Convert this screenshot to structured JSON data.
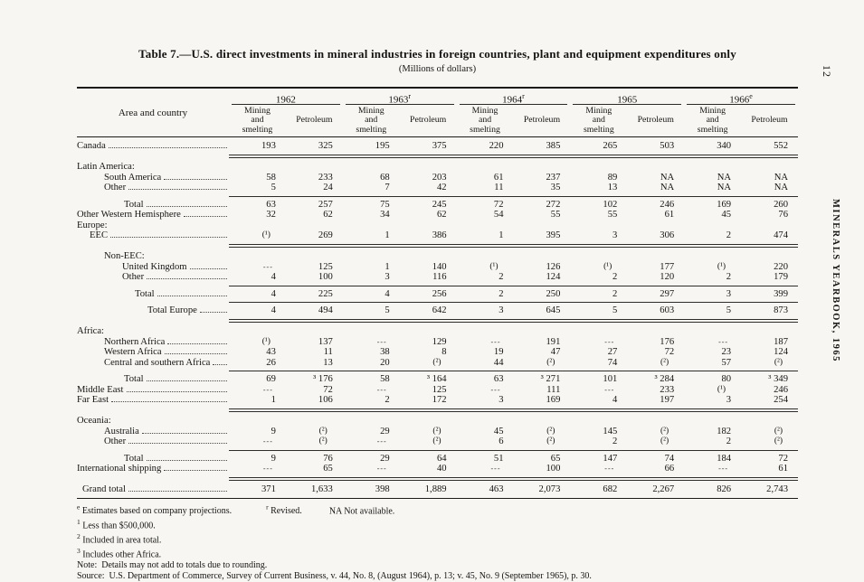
{
  "page": {
    "number": "12",
    "margin_text": "MINERALS YEARBOOK, 1965"
  },
  "table": {
    "title": "Table 7.—U.S. direct investments in mineral industries in foreign countries, plant and equipment expenditures only",
    "subtitle": "(Millions of dollars)",
    "stub_header": "Area and country",
    "years": [
      {
        "label": "1962",
        "sup": ""
      },
      {
        "label": "1963",
        "sup": "r"
      },
      {
        "label": "1964",
        "sup": "r"
      },
      {
        "label": "1965",
        "sup": ""
      },
      {
        "label": "1966",
        "sup": "e"
      }
    ],
    "col_headers": [
      "Mining\nand\nsmelting",
      "Petroleum"
    ],
    "rows": [
      {
        "label": "Canada",
        "ind": 0,
        "vals": [
          "193",
          "325",
          "195",
          "375",
          "220",
          "385",
          "265",
          "503",
          "340",
          "552"
        ],
        "rule": "d"
      },
      {
        "label": "Latin America:",
        "ind": 0,
        "sec": true
      },
      {
        "label": "South America",
        "ind": 30,
        "vals": [
          "58",
          "233",
          "68",
          "203",
          "61",
          "237",
          "89",
          "NA",
          "NA",
          "NA"
        ]
      },
      {
        "label": "Other",
        "ind": 30,
        "vals": [
          "5",
          "24",
          "7",
          "42",
          "11",
          "35",
          "13",
          "NA",
          "NA",
          "NA"
        ],
        "rule": "s"
      },
      {
        "label": "Total",
        "ind": 52,
        "vals": [
          "63",
          "257",
          "75",
          "245",
          "72",
          "272",
          "102",
          "246",
          "169",
          "260"
        ]
      },
      {
        "label": "Other Western Hemisphere",
        "ind": 0,
        "vals": [
          "32",
          "62",
          "34",
          "62",
          "54",
          "55",
          "55",
          "61",
          "45",
          "76"
        ]
      },
      {
        "label": "Europe:",
        "ind": 0,
        "sec": true
      },
      {
        "label": "EEC",
        "ind": 14,
        "vals": [
          "(¹)",
          "269",
          "1",
          "386",
          "1",
          "395",
          "3",
          "306",
          "2",
          "474"
        ],
        "rule": "d"
      },
      {
        "label": "Non-EEC:",
        "ind": 30,
        "sec": true
      },
      {
        "label": "United Kingdom",
        "ind": 50,
        "vals": [
          "---",
          "125",
          "1",
          "140",
          "(¹)",
          "126",
          "(¹)",
          "177",
          "(¹)",
          "220"
        ]
      },
      {
        "label": "Other",
        "ind": 50,
        "vals": [
          "4",
          "100",
          "3",
          "116",
          "2",
          "124",
          "2",
          "120",
          "2",
          "179"
        ],
        "rule": "s"
      },
      {
        "label": "Total",
        "ind": 64,
        "vals": [
          "4",
          "225",
          "4",
          "256",
          "2",
          "250",
          "2",
          "297",
          "3",
          "399"
        ],
        "rule": "s"
      },
      {
        "label": "Total Europe",
        "ind": 78,
        "vals": [
          "4",
          "494",
          "5",
          "642",
          "3",
          "645",
          "5",
          "603",
          "5",
          "873"
        ],
        "rule": "d"
      },
      {
        "label": "Africa:",
        "ind": 0,
        "sec": true
      },
      {
        "label": "Northern Africa",
        "ind": 30,
        "vals": [
          "(¹)",
          "137",
          "---",
          "129",
          "---",
          "191",
          "---",
          "176",
          "---",
          "187"
        ]
      },
      {
        "label": "Western Africa",
        "ind": 30,
        "vals": [
          "43",
          "11",
          "38",
          "8",
          "19",
          "47",
          "27",
          "72",
          "23",
          "124"
        ]
      },
      {
        "label": "Central and southern Africa",
        "ind": 30,
        "vals": [
          "26",
          "13",
          "20",
          "(²)",
          "44",
          "(²)",
          "74",
          "(²)",
          "57",
          "(²)"
        ],
        "rule": "s"
      },
      {
        "label": "Total",
        "ind": 52,
        "vals": [
          "69",
          "³ 176",
          "58",
          "³ 164",
          "63",
          "³ 271",
          "101",
          "³ 284",
          "80",
          "³ 349"
        ]
      },
      {
        "label": "Middle East",
        "ind": 0,
        "vals": [
          "---",
          "72",
          "---",
          "125",
          "---",
          "111",
          "---",
          "233",
          "(¹)",
          "246"
        ]
      },
      {
        "label": "Far East",
        "ind": 0,
        "vals": [
          "1",
          "106",
          "2",
          "172",
          "3",
          "169",
          "4",
          "197",
          "3",
          "254"
        ],
        "rule": "d"
      },
      {
        "label": "Oceania:",
        "ind": 0,
        "sec": true
      },
      {
        "label": "Australia",
        "ind": 30,
        "vals": [
          "9",
          "(²)",
          "29",
          "(²)",
          "45",
          "(²)",
          "145",
          "(²)",
          "182",
          "(²)"
        ]
      },
      {
        "label": "Other",
        "ind": 30,
        "vals": [
          "---",
          "(²)",
          "---",
          "(²)",
          "6",
          "(²)",
          "2",
          "(²)",
          "2",
          "(²)"
        ],
        "rule": "s"
      },
      {
        "label": "Total",
        "ind": 52,
        "vals": [
          "9",
          "76",
          "29",
          "64",
          "51",
          "65",
          "147",
          "74",
          "184",
          "72"
        ]
      },
      {
        "label": "International shipping",
        "ind": 0,
        "vals": [
          "---",
          "65",
          "---",
          "40",
          "---",
          "100",
          "---",
          "66",
          "---",
          "61"
        ],
        "rule": "d"
      },
      {
        "label": "Grand total",
        "ind": 6,
        "vals": [
          "371",
          "1,633",
          "398",
          "1,889",
          "463",
          "2,073",
          "682",
          "2,267",
          "826",
          "2,743"
        ],
        "rule": "full"
      }
    ]
  },
  "footnotes": {
    "est": {
      "sup": "e",
      "text": "Estimates based on company projections."
    },
    "rev": {
      "sup": "r",
      "text": "Revised."
    },
    "na": "NA Not available.",
    "fn1": {
      "sup": "1",
      "text": "Less than $500,000."
    },
    "fn2": {
      "sup": "2",
      "text": "Included in area total."
    },
    "fn3": {
      "sup": "3",
      "text": "Includes other Africa."
    },
    "note": "Note:  Details may not add to totals due to rounding.",
    "source": "Source:  U.S. Department of Commerce, Survey of Current Business, v. 44, No. 8, (August 1964), p. 13; v. 45, No. 9 (September 1965), p. 30."
  }
}
